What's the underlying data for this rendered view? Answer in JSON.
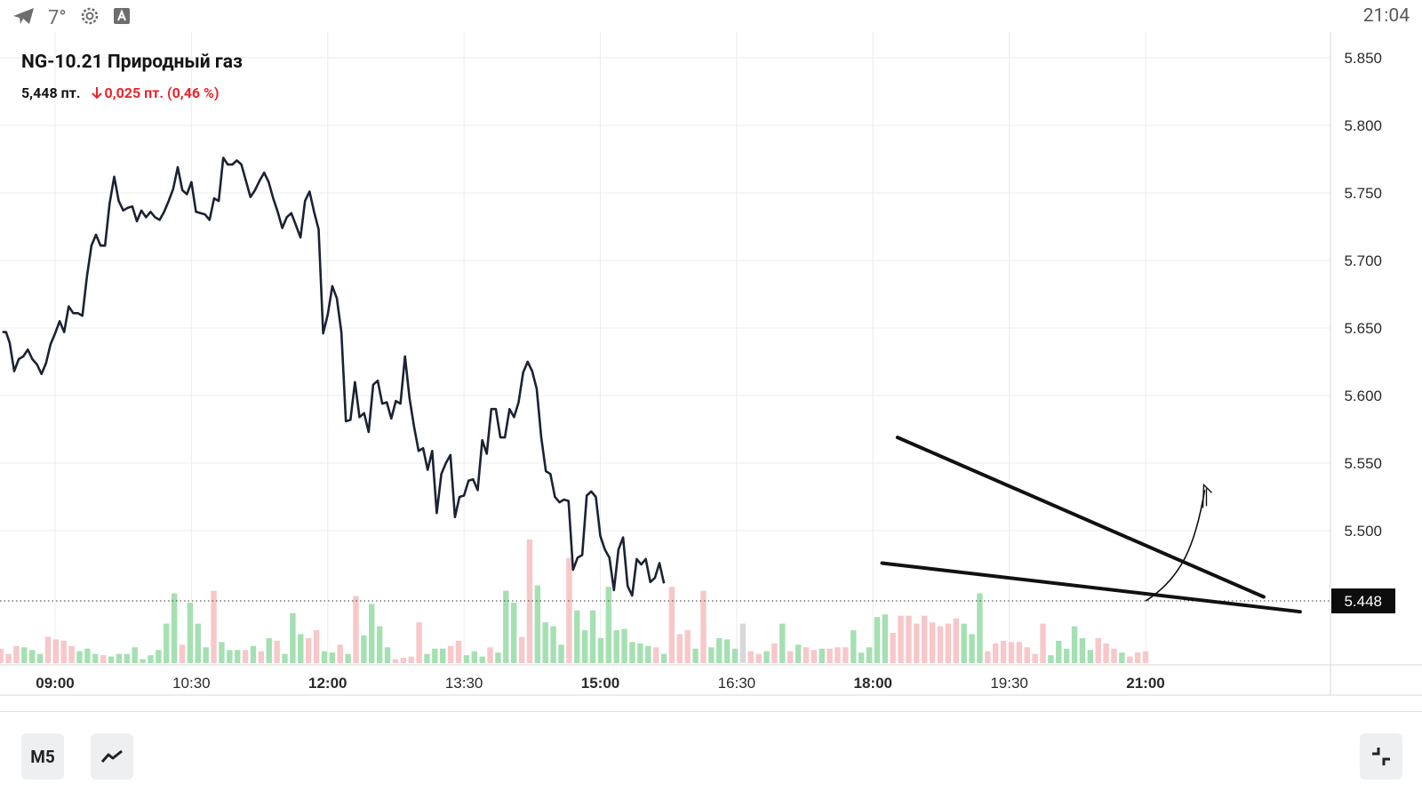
{
  "status_bar": {
    "temperature": "7°",
    "time": "21:04"
  },
  "instrument": {
    "title": "NG-10.21 Природный газ",
    "price": "5,448 пт.",
    "change": "0,025 пт. (0,46 %)",
    "change_color": "#e8252a"
  },
  "toolbar": {
    "interval_label": "M5"
  },
  "chart_data": {
    "type": "line",
    "title": "NG-10.21 Природный газ",
    "x_ticks": [
      {
        "label": "09:00",
        "t": 9.0,
        "bold": true
      },
      {
        "label": "10:30",
        "t": 10.5,
        "bold": false
      },
      {
        "label": "12:00",
        "t": 12.0,
        "bold": true
      },
      {
        "label": "13:30",
        "t": 13.5,
        "bold": false
      },
      {
        "label": "15:00",
        "t": 15.0,
        "bold": true
      },
      {
        "label": "16:30",
        "t": 16.5,
        "bold": false
      },
      {
        "label": "18:00",
        "t": 18.0,
        "bold": true
      },
      {
        "label": "19:30",
        "t": 19.5,
        "bold": false
      },
      {
        "label": "21:00",
        "t": 21.0,
        "bold": true
      }
    ],
    "y_ticks": [
      "5.850",
      "5.800",
      "5.750",
      "5.700",
      "5.650",
      "5.600",
      "5.550",
      "5.500"
    ],
    "y_range": [
      5.4,
      5.86
    ],
    "time_range": [
      8.4,
      23.1
    ],
    "last_price": "5.448",
    "last_price_value": 5.448,
    "series": [
      {
        "name": "price",
        "points": [
          [
            8.42,
            5.647
          ],
          [
            8.46,
            5.647
          ],
          [
            8.5,
            5.639
          ],
          [
            8.55,
            5.618
          ],
          [
            8.6,
            5.627
          ],
          [
            8.65,
            5.629
          ],
          [
            8.7,
            5.634
          ],
          [
            8.75,
            5.627
          ],
          [
            8.8,
            5.623
          ],
          [
            8.85,
            5.616
          ],
          [
            8.9,
            5.624
          ],
          [
            8.95,
            5.638
          ],
          [
            9.0,
            5.646
          ],
          [
            9.05,
            5.655
          ],
          [
            9.1,
            5.647
          ],
          [
            9.15,
            5.666
          ],
          [
            9.2,
            5.661
          ],
          [
            9.25,
            5.661
          ],
          [
            9.3,
            5.659
          ],
          [
            9.35,
            5.688
          ],
          [
            9.4,
            5.711
          ],
          [
            9.45,
            5.719
          ],
          [
            9.5,
            5.711
          ],
          [
            9.55,
            5.711
          ],
          [
            9.6,
            5.742
          ],
          [
            9.65,
            5.762
          ],
          [
            9.7,
            5.744
          ],
          [
            9.75,
            5.737
          ],
          [
            9.8,
            5.739
          ],
          [
            9.85,
            5.74
          ],
          [
            9.9,
            5.729
          ],
          [
            9.95,
            5.737
          ],
          [
            10.0,
            5.732
          ],
          [
            10.05,
            5.736
          ],
          [
            10.1,
            5.732
          ],
          [
            10.15,
            5.73
          ],
          [
            10.2,
            5.736
          ],
          [
            10.25,
            5.744
          ],
          [
            10.3,
            5.753
          ],
          [
            10.35,
            5.769
          ],
          [
            10.4,
            5.752
          ],
          [
            10.45,
            5.749
          ],
          [
            10.5,
            5.758
          ],
          [
            10.55,
            5.736
          ],
          [
            10.6,
            5.735
          ],
          [
            10.65,
            5.734
          ],
          [
            10.7,
            5.73
          ],
          [
            10.75,
            5.746
          ],
          [
            10.8,
            5.744
          ],
          [
            10.85,
            5.776
          ],
          [
            10.9,
            5.771
          ],
          [
            10.95,
            5.771
          ],
          [
            11.0,
            5.774
          ],
          [
            11.05,
            5.771
          ],
          [
            11.1,
            5.759
          ],
          [
            11.15,
            5.747
          ],
          [
            11.2,
            5.752
          ],
          [
            11.25,
            5.759
          ],
          [
            11.3,
            5.765
          ],
          [
            11.35,
            5.758
          ],
          [
            11.4,
            5.746
          ],
          [
            11.45,
            5.736
          ],
          [
            11.5,
            5.724
          ],
          [
            11.55,
            5.732
          ],
          [
            11.6,
            5.735
          ],
          [
            11.65,
            5.726
          ],
          [
            11.7,
            5.717
          ],
          [
            11.75,
            5.744
          ],
          [
            11.8,
            5.751
          ],
          [
            11.85,
            5.736
          ],
          [
            11.9,
            5.723
          ],
          [
            11.95,
            5.646
          ],
          [
            12.0,
            5.66
          ],
          [
            12.05,
            5.681
          ],
          [
            12.1,
            5.672
          ],
          [
            12.15,
            5.647
          ],
          [
            12.2,
            5.581
          ],
          [
            12.25,
            5.582
          ],
          [
            12.3,
            5.61
          ],
          [
            12.35,
            5.584
          ],
          [
            12.4,
            5.587
          ],
          [
            12.45,
            5.573
          ],
          [
            12.5,
            5.608
          ],
          [
            12.55,
            5.611
          ],
          [
            12.6,
            5.594
          ],
          [
            12.65,
            5.595
          ],
          [
            12.7,
            5.583
          ],
          [
            12.75,
            5.596
          ],
          [
            12.8,
            5.594
          ],
          [
            12.85,
            5.629
          ],
          [
            12.9,
            5.598
          ],
          [
            12.95,
            5.577
          ],
          [
            13.0,
            5.559
          ],
          [
            13.05,
            5.561
          ],
          [
            13.1,
            5.545
          ],
          [
            13.15,
            5.559
          ],
          [
            13.2,
            5.513
          ],
          [
            13.25,
            5.542
          ],
          [
            13.3,
            5.55
          ],
          [
            13.35,
            5.556
          ],
          [
            13.4,
            5.51
          ],
          [
            13.45,
            5.525
          ],
          [
            13.5,
            5.526
          ],
          [
            13.55,
            5.537
          ],
          [
            13.6,
            5.538
          ],
          [
            13.65,
            5.53
          ],
          [
            13.7,
            5.567
          ],
          [
            13.75,
            5.557
          ],
          [
            13.8,
            5.59
          ],
          [
            13.85,
            5.59
          ],
          [
            13.9,
            5.569
          ],
          [
            13.95,
            5.569
          ],
          [
            14.0,
            5.59
          ],
          [
            14.05,
            5.584
          ],
          [
            14.1,
            5.595
          ],
          [
            14.15,
            5.617
          ],
          [
            14.2,
            5.625
          ],
          [
            14.25,
            5.618
          ],
          [
            14.3,
            5.605
          ],
          [
            14.35,
            5.569
          ],
          [
            14.4,
            5.544
          ],
          [
            14.45,
            5.542
          ],
          [
            14.5,
            5.525
          ],
          [
            14.55,
            5.521
          ],
          [
            14.6,
            5.523
          ],
          [
            14.65,
            5.522
          ],
          [
            14.7,
            5.471
          ],
          [
            14.75,
            5.48
          ],
          [
            14.8,
            5.482
          ],
          [
            14.85,
            5.526
          ],
          [
            14.9,
            5.529
          ],
          [
            14.95,
            5.525
          ],
          [
            15.0,
            5.496
          ],
          [
            15.05,
            5.486
          ],
          [
            15.1,
            5.48
          ],
          [
            15.15,
            5.456
          ],
          [
            15.2,
            5.486
          ],
          [
            15.25,
            5.495
          ],
          [
            15.3,
            5.459
          ],
          [
            15.35,
            5.452
          ],
          [
            15.4,
            5.479
          ],
          [
            15.45,
            5.475
          ],
          [
            15.5,
            5.479
          ],
          [
            15.55,
            5.462
          ],
          [
            15.6,
            5.465
          ],
          [
            15.65,
            5.476
          ],
          [
            15.7,
            5.461
          ]
        ]
      }
    ],
    "volume": [
      {
        "v": 0.11,
        "c": "red"
      },
      {
        "v": 0.07,
        "c": "red"
      },
      {
        "v": 0.13,
        "c": "red"
      },
      {
        "v": 0.12,
        "c": "green"
      },
      {
        "v": 0.1,
        "c": "green"
      },
      {
        "v": 0.07,
        "c": "green"
      },
      {
        "v": 0.2,
        "c": "red"
      },
      {
        "v": 0.18,
        "c": "red"
      },
      {
        "v": 0.17,
        "c": "red"
      },
      {
        "v": 0.13,
        "c": "red"
      },
      {
        "v": 0.09,
        "c": "green"
      },
      {
        "v": 0.11,
        "c": "green"
      },
      {
        "v": 0.07,
        "c": "green"
      },
      {
        "v": 0.06,
        "c": "red"
      },
      {
        "v": 0.05,
        "c": "green"
      },
      {
        "v": 0.07,
        "c": "green"
      },
      {
        "v": 0.07,
        "c": "green"
      },
      {
        "v": 0.12,
        "c": "green"
      },
      {
        "v": 0.03,
        "c": "green"
      },
      {
        "v": 0.06,
        "c": "green"
      },
      {
        "v": 0.1,
        "c": "green"
      },
      {
        "v": 0.3,
        "c": "green"
      },
      {
        "v": 0.53,
        "c": "green"
      },
      {
        "v": 0.14,
        "c": "red"
      },
      {
        "v": 0.46,
        "c": "green"
      },
      {
        "v": 0.3,
        "c": "green"
      },
      {
        "v": 0.12,
        "c": "green"
      },
      {
        "v": 0.55,
        "c": "red"
      },
      {
        "v": 0.16,
        "c": "green"
      },
      {
        "v": 0.1,
        "c": "green"
      },
      {
        "v": 0.1,
        "c": "green"
      },
      {
        "v": 0.1,
        "c": "red"
      },
      {
        "v": 0.13,
        "c": "green"
      },
      {
        "v": 0.09,
        "c": "red"
      },
      {
        "v": 0.19,
        "c": "green"
      },
      {
        "v": 0.17,
        "c": "red"
      },
      {
        "v": 0.07,
        "c": "green"
      },
      {
        "v": 0.38,
        "c": "green"
      },
      {
        "v": 0.22,
        "c": "green"
      },
      {
        "v": 0.19,
        "c": "red"
      },
      {
        "v": 0.25,
        "c": "red"
      },
      {
        "v": 0.09,
        "c": "green"
      },
      {
        "v": 0.08,
        "c": "green"
      },
      {
        "v": 0.14,
        "c": "red"
      },
      {
        "v": 0.07,
        "c": "green"
      },
      {
        "v": 0.51,
        "c": "red"
      },
      {
        "v": 0.21,
        "c": "green"
      },
      {
        "v": 0.45,
        "c": "green"
      },
      {
        "v": 0.28,
        "c": "green"
      },
      {
        "v": 0.12,
        "c": "green"
      },
      {
        "v": 0.03,
        "c": "red"
      },
      {
        "v": 0.04,
        "c": "red"
      },
      {
        "v": 0.05,
        "c": "red"
      },
      {
        "v": 0.31,
        "c": "red"
      },
      {
        "v": 0.07,
        "c": "green"
      },
      {
        "v": 0.11,
        "c": "green"
      },
      {
        "v": 0.11,
        "c": "green"
      },
      {
        "v": 0.13,
        "c": "red"
      },
      {
        "v": 0.17,
        "c": "red"
      },
      {
        "v": 0.06,
        "c": "green"
      },
      {
        "v": 0.09,
        "c": "green"
      },
      {
        "v": 0.05,
        "c": "green"
      },
      {
        "v": 0.12,
        "c": "red"
      },
      {
        "v": 0.08,
        "c": "green"
      },
      {
        "v": 0.55,
        "c": "green"
      },
      {
        "v": 0.46,
        "c": "green"
      },
      {
        "v": 0.2,
        "c": "red"
      },
      {
        "v": 0.94,
        "c": "red"
      },
      {
        "v": 0.59,
        "c": "green"
      },
      {
        "v": 0.31,
        "c": "green"
      },
      {
        "v": 0.28,
        "c": "green"
      },
      {
        "v": 0.14,
        "c": "green"
      },
      {
        "v": 0.8,
        "c": "red"
      },
      {
        "v": 0.4,
        "c": "green"
      },
      {
        "v": 0.25,
        "c": "green"
      },
      {
        "v": 0.4,
        "c": "green"
      },
      {
        "v": 0.19,
        "c": "green"
      },
      {
        "v": 0.58,
        "c": "green"
      },
      {
        "v": 0.25,
        "c": "green"
      },
      {
        "v": 0.26,
        "c": "green"
      },
      {
        "v": 0.16,
        "c": "green"
      },
      {
        "v": 0.15,
        "c": "green"
      },
      {
        "v": 0.13,
        "c": "green"
      },
      {
        "v": 0.12,
        "c": "red"
      },
      {
        "v": 0.07,
        "c": "green"
      },
      {
        "v": 0.58,
        "c": "red"
      },
      {
        "v": 0.22,
        "c": "red"
      },
      {
        "v": 0.25,
        "c": "red"
      },
      {
        "v": 0.11,
        "c": "green"
      },
      {
        "v": 0.55,
        "c": "red"
      },
      {
        "v": 0.12,
        "c": "green"
      },
      {
        "v": 0.19,
        "c": "green"
      },
      {
        "v": 0.18,
        "c": "green"
      },
      {
        "v": 0.11,
        "c": "green"
      },
      {
        "v": 0.3,
        "c": "gray"
      },
      {
        "v": 0.09,
        "c": "red"
      },
      {
        "v": 0.07,
        "c": "red"
      },
      {
        "v": 0.09,
        "c": "green"
      },
      {
        "v": 0.15,
        "c": "red"
      },
      {
        "v": 0.3,
        "c": "green"
      },
      {
        "v": 0.09,
        "c": "red"
      },
      {
        "v": 0.14,
        "c": "green"
      },
      {
        "v": 0.12,
        "c": "red"
      },
      {
        "v": 0.1,
        "c": "red"
      },
      {
        "v": 0.11,
        "c": "green"
      },
      {
        "v": 0.11,
        "c": "red"
      },
      {
        "v": 0.12,
        "c": "red"
      },
      {
        "v": 0.12,
        "c": "red"
      },
      {
        "v": 0.25,
        "c": "green"
      },
      {
        "v": 0.08,
        "c": "green"
      },
      {
        "v": 0.12,
        "c": "green"
      },
      {
        "v": 0.35,
        "c": "green"
      },
      {
        "v": 0.37,
        "c": "green"
      },
      {
        "v": 0.23,
        "c": "red"
      },
      {
        "v": 0.36,
        "c": "red"
      },
      {
        "v": 0.36,
        "c": "red"
      },
      {
        "v": 0.3,
        "c": "red"
      },
      {
        "v": 0.36,
        "c": "red"
      },
      {
        "v": 0.31,
        "c": "red"
      },
      {
        "v": 0.28,
        "c": "red"
      },
      {
        "v": 0.3,
        "c": "red"
      },
      {
        "v": 0.34,
        "c": "red"
      },
      {
        "v": 0.3,
        "c": "green"
      },
      {
        "v": 0.22,
        "c": "green"
      },
      {
        "v": 0.53,
        "c": "green"
      },
      {
        "v": 0.09,
        "c": "red"
      },
      {
        "v": 0.15,
        "c": "red"
      },
      {
        "v": 0.17,
        "c": "red"
      },
      {
        "v": 0.16,
        "c": "red"
      },
      {
        "v": 0.16,
        "c": "red"
      },
      {
        "v": 0.12,
        "c": "red"
      },
      {
        "v": 0.07,
        "c": "red"
      },
      {
        "v": 0.3,
        "c": "red"
      },
      {
        "v": 0.06,
        "c": "green"
      },
      {
        "v": 0.17,
        "c": "green"
      },
      {
        "v": 0.11,
        "c": "green"
      },
      {
        "v": 0.28,
        "c": "green"
      },
      {
        "v": 0.19,
        "c": "green"
      },
      {
        "v": 0.1,
        "c": "green"
      },
      {
        "v": 0.19,
        "c": "red"
      },
      {
        "v": 0.15,
        "c": "red"
      },
      {
        "v": 0.11,
        "c": "red"
      },
      {
        "v": 0.08,
        "c": "green"
      },
      {
        "v": 0.05,
        "c": "red"
      },
      {
        "v": 0.08,
        "c": "red"
      },
      {
        "v": 0.09,
        "c": "red"
      }
    ],
    "drawing": {
      "upper_line": [
        [
          18.27,
          5.569
        ],
        [
          22.3,
          5.451
        ]
      ],
      "lower_line": [
        [
          18.1,
          5.476
        ],
        [
          22.7,
          5.44
        ]
      ],
      "arrow": [
        [
          21.0,
          5.448
        ],
        [
          21.4,
          5.465
        ],
        [
          21.55,
          5.49
        ],
        [
          21.65,
          5.53
        ],
        [
          21.7,
          5.538
        ]
      ]
    }
  },
  "colors": {
    "line": "#1c2233",
    "volume_green": "#a5e0b2",
    "volume_red": "#f7c7c9",
    "volume_gray": "#d8d8d8",
    "grid": "#ececec",
    "axis_text": "#2a2a2a"
  }
}
